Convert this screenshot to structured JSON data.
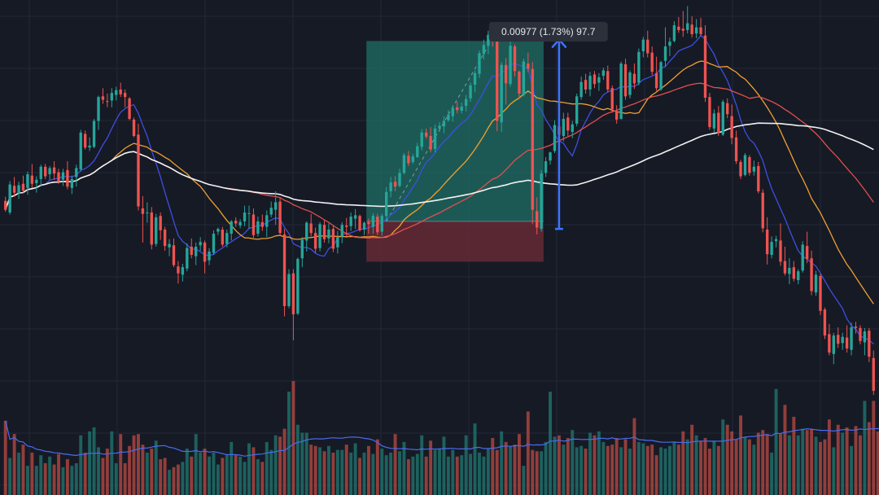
{
  "chart_data": {
    "type": "candlestick",
    "grid": true,
    "colors": {
      "background": "#161a25",
      "grid": "#232838",
      "up": "#26a69a",
      "down": "#ef5350",
      "ma_fast": "#3d4fe0",
      "ma_mid": "#f0a030",
      "ma_slow": "#e0504f",
      "ma_long": "#f2f2f2",
      "volume_up": "#1f6f69",
      "volume_down": "#a8453f",
      "volume_ma": "#4a6cf0",
      "position_profit": "#1f6f66",
      "position_loss": "#6a2b36",
      "measure_arrow": "#3a74ff",
      "label_bg": "#2c303b"
    },
    "y_range": [
      48,
      104
    ],
    "bars": [
      [
        74.6,
        75.2,
        73.0,
        73.3
      ],
      [
        72.9,
        77.5,
        72.6,
        77.0
      ],
      [
        76.8,
        78.1,
        75.2,
        75.8
      ],
      [
        75.7,
        77.4,
        74.9,
        76.9
      ],
      [
        77.1,
        78.3,
        75.8,
        76.1
      ],
      [
        76.5,
        78.9,
        75.5,
        78.5
      ],
      [
        78.3,
        80.0,
        76.5,
        77.1
      ],
      [
        77.2,
        78.2,
        75.8,
        77.7
      ],
      [
        77.8,
        79.9,
        76.7,
        79.6
      ],
      [
        79.6,
        80.0,
        77.8,
        78.2
      ],
      [
        78.5,
        79.7,
        77.7,
        79.4
      ],
      [
        79.5,
        80.4,
        77.7,
        78.6
      ],
      [
        78.8,
        79.3,
        77.1,
        77.4
      ],
      [
        77.7,
        79.3,
        76.8,
        78.8
      ],
      [
        79.1,
        80.4,
        76.3,
        76.7
      ],
      [
        76.5,
        78.3,
        75.6,
        77.8
      ],
      [
        78.1,
        79.9,
        76.7,
        79.4
      ],
      [
        79.2,
        85.0,
        78.9,
        84.6
      ],
      [
        84.4,
        84.9,
        82.1,
        82.4
      ],
      [
        82.4,
        83.9,
        81.9,
        82.7
      ],
      [
        82.5,
        86.6,
        82.3,
        86.3
      ],
      [
        86.3,
        90.0,
        85.0,
        89.8
      ],
      [
        89.9,
        91.1,
        88.8,
        89.4
      ],
      [
        89.2,
        90.3,
        88.3,
        89.1
      ],
      [
        89.3,
        91.1,
        88.3,
        90.4
      ],
      [
        90.1,
        91.3,
        89.3,
        90.8
      ],
      [
        90.9,
        91.9,
        89.8,
        90.2
      ],
      [
        90.4,
        90.9,
        88.3,
        89.8
      ],
      [
        89.6,
        89.8,
        86.4,
        86.6
      ],
      [
        86.5,
        86.8,
        83.9,
        84.1
      ],
      [
        84.3,
        85.9,
        73.2,
        73.8
      ],
      [
        73.5,
        75.3,
        68.5,
        72.7
      ],
      [
        72.8,
        74.4,
        71.4,
        72.9
      ],
      [
        72.9,
        73.7,
        67.5,
        68.2
      ],
      [
        68.3,
        72.7,
        67.9,
        72.2
      ],
      [
        72.4,
        72.9,
        68.9,
        70.3
      ],
      [
        70.4,
        70.8,
        67.3,
        68.0
      ],
      [
        67.8,
        69.0,
        66.5,
        68.3
      ],
      [
        68.1,
        69.1,
        64.9,
        65.2
      ],
      [
        65.0,
        65.8,
        62.5,
        64.0
      ],
      [
        63.8,
        65.4,
        62.8,
        64.9
      ],
      [
        64.7,
        68.4,
        64.3,
        67.7
      ],
      [
        67.9,
        69.1,
        66.2,
        66.7
      ],
      [
        66.5,
        68.5,
        65.2,
        67.9
      ],
      [
        68.1,
        69.3,
        67.3,
        68.6
      ],
      [
        68.5,
        68.8,
        64.0,
        65.7
      ],
      [
        65.9,
        67.7,
        65.2,
        67.2
      ],
      [
        67.0,
        70.3,
        66.7,
        69.8
      ],
      [
        70.1,
        70.7,
        69.6,
        70.5
      ],
      [
        70.4,
        70.8,
        67.9,
        68.2
      ],
      [
        68.3,
        70.4,
        67.8,
        69.9
      ],
      [
        69.8,
        71.8,
        68.8,
        71.6
      ],
      [
        71.7,
        72.2,
        70.8,
        71.3
      ],
      [
        71.0,
        71.9,
        70.6,
        71.5
      ],
      [
        71.6,
        73.9,
        70.9,
        72.9
      ],
      [
        72.7,
        73.9,
        70.5,
        72.8
      ],
      [
        72.6,
        73.5,
        69.2,
        69.6
      ],
      [
        69.8,
        72.3,
        69.4,
        71.6
      ],
      [
        71.5,
        72.6,
        70.2,
        70.8
      ],
      [
        70.8,
        73.2,
        69.3,
        72.5
      ],
      [
        72.6,
        74.5,
        72.2,
        73.6
      ],
      [
        73.3,
        76.0,
        71.1,
        74.4
      ],
      [
        74.5,
        75.0,
        69.5,
        69.9
      ],
      [
        69.7,
        70.5,
        57.7,
        59.2
      ],
      [
        59.2,
        64.6,
        58.9,
        63.9
      ],
      [
        64.0,
        64.6,
        54.2,
        58.0
      ],
      [
        58.1,
        66.3,
        57.9,
        66.1
      ],
      [
        66.2,
        69.3,
        64.9,
        68.9
      ],
      [
        68.8,
        71.6,
        67.2,
        71.4
      ],
      [
        71.3,
        72.7,
        69.4,
        69.9
      ],
      [
        69.9,
        70.7,
        67.0,
        67.6
      ],
      [
        67.7,
        71.5,
        67.2,
        71.2
      ],
      [
        71.1,
        71.8,
        68.5,
        69.0
      ],
      [
        69.1,
        71.3,
        68.4,
        70.4
      ],
      [
        70.5,
        71.0,
        67.1,
        67.6
      ],
      [
        67.8,
        70.2,
        66.9,
        69.3
      ],
      [
        69.4,
        71.5,
        68.4,
        71.1
      ],
      [
        71.0,
        72.1,
        69.2,
        70.8
      ],
      [
        70.9,
        72.9,
        70.2,
        72.3
      ],
      [
        72.0,
        73.4,
        70.5,
        72.5
      ],
      [
        72.4,
        72.6,
        70.1,
        70.3
      ],
      [
        70.4,
        71.6,
        69.6,
        71.4
      ],
      [
        71.5,
        72.0,
        69.8,
        71.2
      ],
      [
        70.8,
        72.8,
        69.8,
        72.4
      ],
      [
        72.3,
        72.7,
        69.6,
        70.0
      ],
      [
        70.1,
        72.7,
        69.5,
        72.4
      ],
      [
        72.4,
        76.6,
        71.7,
        75.9
      ],
      [
        76.0,
        78.1,
        75.1,
        77.3
      ],
      [
        77.4,
        78.2,
        76.0,
        76.7
      ],
      [
        76.8,
        79.3,
        76.6,
        78.7
      ],
      [
        78.7,
        81.6,
        78.5,
        81.3
      ],
      [
        81.2,
        81.9,
        79.7,
        80.1
      ],
      [
        80.3,
        81.5,
        80.0,
        81.1
      ],
      [
        81.0,
        83.1,
        80.9,
        82.6
      ],
      [
        82.5,
        85.1,
        82.0,
        84.6
      ],
      [
        84.6,
        85.2,
        83.7,
        84.0
      ],
      [
        84.1,
        85.4,
        81.7,
        82.1
      ],
      [
        82.2,
        85.8,
        81.7,
        85.2
      ],
      [
        85.2,
        86.1,
        84.7,
        85.6
      ],
      [
        85.5,
        87.0,
        84.5,
        86.3
      ],
      [
        86.4,
        87.9,
        86.2,
        87.2
      ],
      [
        87.0,
        88.6,
        86.2,
        88.2
      ],
      [
        88.3,
        89.1,
        87.4,
        87.9
      ],
      [
        87.8,
        89.0,
        87.4,
        88.4
      ],
      [
        88.5,
        90.1,
        87.7,
        89.5
      ],
      [
        89.6,
        91.9,
        89.1,
        91.5
      ],
      [
        91.6,
        93.7,
        90.5,
        93.3
      ],
      [
        93.2,
        96.6,
        92.6,
        96.2
      ],
      [
        96.1,
        98.2,
        95.3,
        97.4
      ],
      [
        97.3,
        99.5,
        96.1,
        98.9
      ],
      [
        98.9,
        100.5,
        97.2,
        98.0
      ],
      [
        97.9,
        98.5,
        84.8,
        86.3
      ],
      [
        86.1,
        94.9,
        84.7,
        94.5
      ],
      [
        94.5,
        95.5,
        88.7,
        91.8
      ],
      [
        91.7,
        98.5,
        91.3,
        97.3
      ],
      [
        97.2,
        97.5,
        92.8,
        93.6
      ],
      [
        93.5,
        93.7,
        89.5,
        90.3
      ],
      [
        90.1,
        95.4,
        89.9,
        95.0
      ],
      [
        94.7,
        96.3,
        93.4,
        93.9
      ],
      [
        93.9,
        94.9,
        71.2,
        73.3
      ],
      [
        73.1,
        75.1,
        69.7,
        70.7
      ],
      [
        70.5,
        79.1,
        70.1,
        78.6
      ],
      [
        78.7,
        81.0,
        78.1,
        80.4
      ],
      [
        80.5,
        81.8,
        79.9,
        81.7
      ],
      [
        81.9,
        86.4,
        81.6,
        85.7
      ],
      [
        85.5,
        87.1,
        83.5,
        84.3
      ],
      [
        84.1,
        87.5,
        83.3,
        86.6
      ],
      [
        86.8,
        87.5,
        84.1,
        84.9
      ],
      [
        84.7,
        86.3,
        83.8,
        85.8
      ],
      [
        85.9,
        90.3,
        85.5,
        89.9
      ],
      [
        89.8,
        92.8,
        89.4,
        92.0
      ],
      [
        92.3,
        93.2,
        90.3,
        90.9
      ],
      [
        90.9,
        93.5,
        89.9,
        92.9
      ],
      [
        93.1,
        93.6,
        91.1,
        91.7
      ],
      [
        91.9,
        93.3,
        90.7,
        92.7
      ],
      [
        92.9,
        94.1,
        92.3,
        93.7
      ],
      [
        93.6,
        94.4,
        90.5,
        90.9
      ],
      [
        91.1,
        91.5,
        87.5,
        88.0
      ],
      [
        87.7,
        88.6,
        85.9,
        86.5
      ],
      [
        86.6,
        95.0,
        86.5,
        94.7
      ],
      [
        94.6,
        95.4,
        89.4,
        89.9
      ],
      [
        90.1,
        93.7,
        89.6,
        93.4
      ],
      [
        93.2,
        94.7,
        91.0,
        91.8
      ],
      [
        91.9,
        96.9,
        91.5,
        96.4
      ],
      [
        96.5,
        98.6,
        95.6,
        98.2
      ],
      [
        98.2,
        99.5,
        95.6,
        96.2
      ],
      [
        96.3,
        97.2,
        93.0,
        93.5
      ],
      [
        93.3,
        95.7,
        90.7,
        91.1
      ],
      [
        90.9,
        95.1,
        90.7,
        94.9
      ],
      [
        95.1,
        100.0,
        94.2,
        97.2
      ],
      [
        97.3,
        98.5,
        95.8,
        97.9
      ],
      [
        98.0,
        100.9,
        97.8,
        100.3
      ],
      [
        100.1,
        101.5,
        99.2,
        99.6
      ],
      [
        99.8,
        102.4,
        98.6,
        99.5
      ],
      [
        99.6,
        103.1,
        99.1,
        100.6
      ],
      [
        100.4,
        101.6,
        98.5,
        99.0
      ],
      [
        99.1,
        101.2,
        98.4,
        100.0
      ],
      [
        100.0,
        101.4,
        98.7,
        99.0
      ],
      [
        98.8,
        100.3,
        89.1,
        89.7
      ],
      [
        89.8,
        90.4,
        85.0,
        85.4
      ],
      [
        85.2,
        88.0,
        84.6,
        87.4
      ],
      [
        87.5,
        88.5,
        84.1,
        84.5
      ],
      [
        84.3,
        89.4,
        84.1,
        89.1
      ],
      [
        88.9,
        89.6,
        86.7,
        87.3
      ],
      [
        87.0,
        88.7,
        82.9,
        83.8
      ],
      [
        83.9,
        84.9,
        80.0,
        80.4
      ],
      [
        80.3,
        80.6,
        77.8,
        78.2
      ],
      [
        78.4,
        81.6,
        78.2,
        81.3
      ],
      [
        81.0,
        81.3,
        78.3,
        78.7
      ],
      [
        78.9,
        80.5,
        78.3,
        79.6
      ],
      [
        79.7,
        80.3,
        75.7,
        76.0
      ],
      [
        75.8,
        76.3,
        70.0,
        70.6
      ],
      [
        70.4,
        72.2,
        65.3,
        66.8
      ],
      [
        66.7,
        69.4,
        66.2,
        68.6
      ],
      [
        68.7,
        69.5,
        67.8,
        69.0
      ],
      [
        68.8,
        71.3,
        65.1,
        65.7
      ],
      [
        65.8,
        67.9,
        63.7,
        64.0
      ],
      [
        63.9,
        66.2,
        62.4,
        64.8
      ],
      [
        64.9,
        65.8,
        62.8,
        63.2
      ],
      [
        63.0,
        64.6,
        62.4,
        64.3
      ],
      [
        64.4,
        68.7,
        64.1,
        68.2
      ],
      [
        68.0,
        70.1,
        65.5,
        66.1
      ],
      [
        66.2,
        67.3,
        60.8,
        61.4
      ],
      [
        61.2,
        64.4,
        60.7,
        63.8
      ],
      [
        63.6,
        63.9,
        57.9,
        58.5
      ],
      [
        58.7,
        59.0,
        54.4,
        54.9
      ],
      [
        55.1,
        56.6,
        52.0,
        52.4
      ],
      [
        52.2,
        55.3,
        50.7,
        54.9
      ],
      [
        55.0,
        56.1,
        53.1,
        53.7
      ],
      [
        53.8,
        55.3,
        52.8,
        54.7
      ],
      [
        54.6,
        56.4,
        52.4,
        53.0
      ],
      [
        52.8,
        56.8,
        52.0,
        56.1
      ],
      [
        56.2,
        56.9,
        55.2,
        56.0
      ],
      [
        56.0,
        56.4,
        53.6,
        54.1
      ],
      [
        53.9,
        56.0,
        52.0,
        55.5
      ],
      [
        55.6,
        56.0,
        51.0,
        51.8
      ],
      [
        51.6,
        52.7,
        46.2,
        46.8
      ]
    ],
    "volume": [
      56,
      28,
      46,
      32,
      38,
      22,
      32,
      22,
      30,
      24,
      29,
      23,
      31,
      21,
      27,
      22,
      24,
      45,
      32,
      48,
      51,
      36,
      28,
      35,
      48,
      24,
      46,
      24,
      37,
      45,
      46,
      38,
      32,
      35,
      41,
      27,
      28,
      19,
      21,
      23,
      25,
      35,
      29,
      46,
      32,
      35,
      29,
      32,
      23,
      28,
      30,
      40,
      30,
      29,
      25,
      39,
      36,
      27,
      25,
      40,
      34,
      45,
      44,
      50,
      78,
      86,
      53,
      47,
      47,
      38,
      37,
      36,
      33,
      37,
      32,
      34,
      34,
      38,
      32,
      39,
      28,
      32,
      37,
      31,
      42,
      35,
      30,
      32,
      46,
      33,
      40,
      27,
      29,
      31,
      45,
      29,
      41,
      34,
      35,
      44,
      29,
      34,
      29,
      30,
      45,
      31,
      54,
      32,
      29,
      35,
      43,
      34,
      48,
      40,
      37,
      38,
      46,
      22,
      63,
      34,
      33,
      33,
      40,
      78,
      44,
      45,
      38,
      43,
      49,
      36,
      37,
      35,
      47,
      45,
      48,
      40,
      37,
      38,
      43,
      36,
      42,
      35,
      58,
      40,
      39,
      37,
      38,
      30,
      36,
      35,
      37,
      40,
      38,
      48,
      42,
      53,
      45,
      41,
      43,
      35,
      41,
      37,
      57,
      53,
      48,
      42,
      60,
      44,
      42,
      38,
      47,
      49,
      46,
      32,
      80,
      46,
      68,
      45,
      59,
      45,
      50,
      49,
      50,
      44,
      40,
      42,
      57,
      36,
      53,
      47,
      51,
      37,
      52,
      45,
      71,
      55,
      71,
      48,
      52,
      71,
      47,
      66,
      47,
      38,
      58,
      42,
      68,
      64,
      52
    ],
    "moving_averages": [
      {
        "key": "ma_fast",
        "period": 10
      },
      {
        "key": "ma_mid",
        "period": 25
      },
      {
        "key": "ma_slow",
        "period": 50
      },
      {
        "key": "ma_long",
        "period": 100
      }
    ],
    "volume_ma_period": 20,
    "long_position": {
      "start_bar": 82,
      "end_bar": 121,
      "entry": 71.6,
      "take_profit": 98.0,
      "stop_loss": 65.7
    },
    "trend_line": {
      "from_bar": 86,
      "from_price": 71.6,
      "to_bar": 111,
      "to_price": 99.5
    },
    "measure": {
      "bar": 125,
      "from_price": 70.5,
      "to_price": 98.2
    },
    "measure_label": "0.00977 (1.73%) 97.7"
  }
}
